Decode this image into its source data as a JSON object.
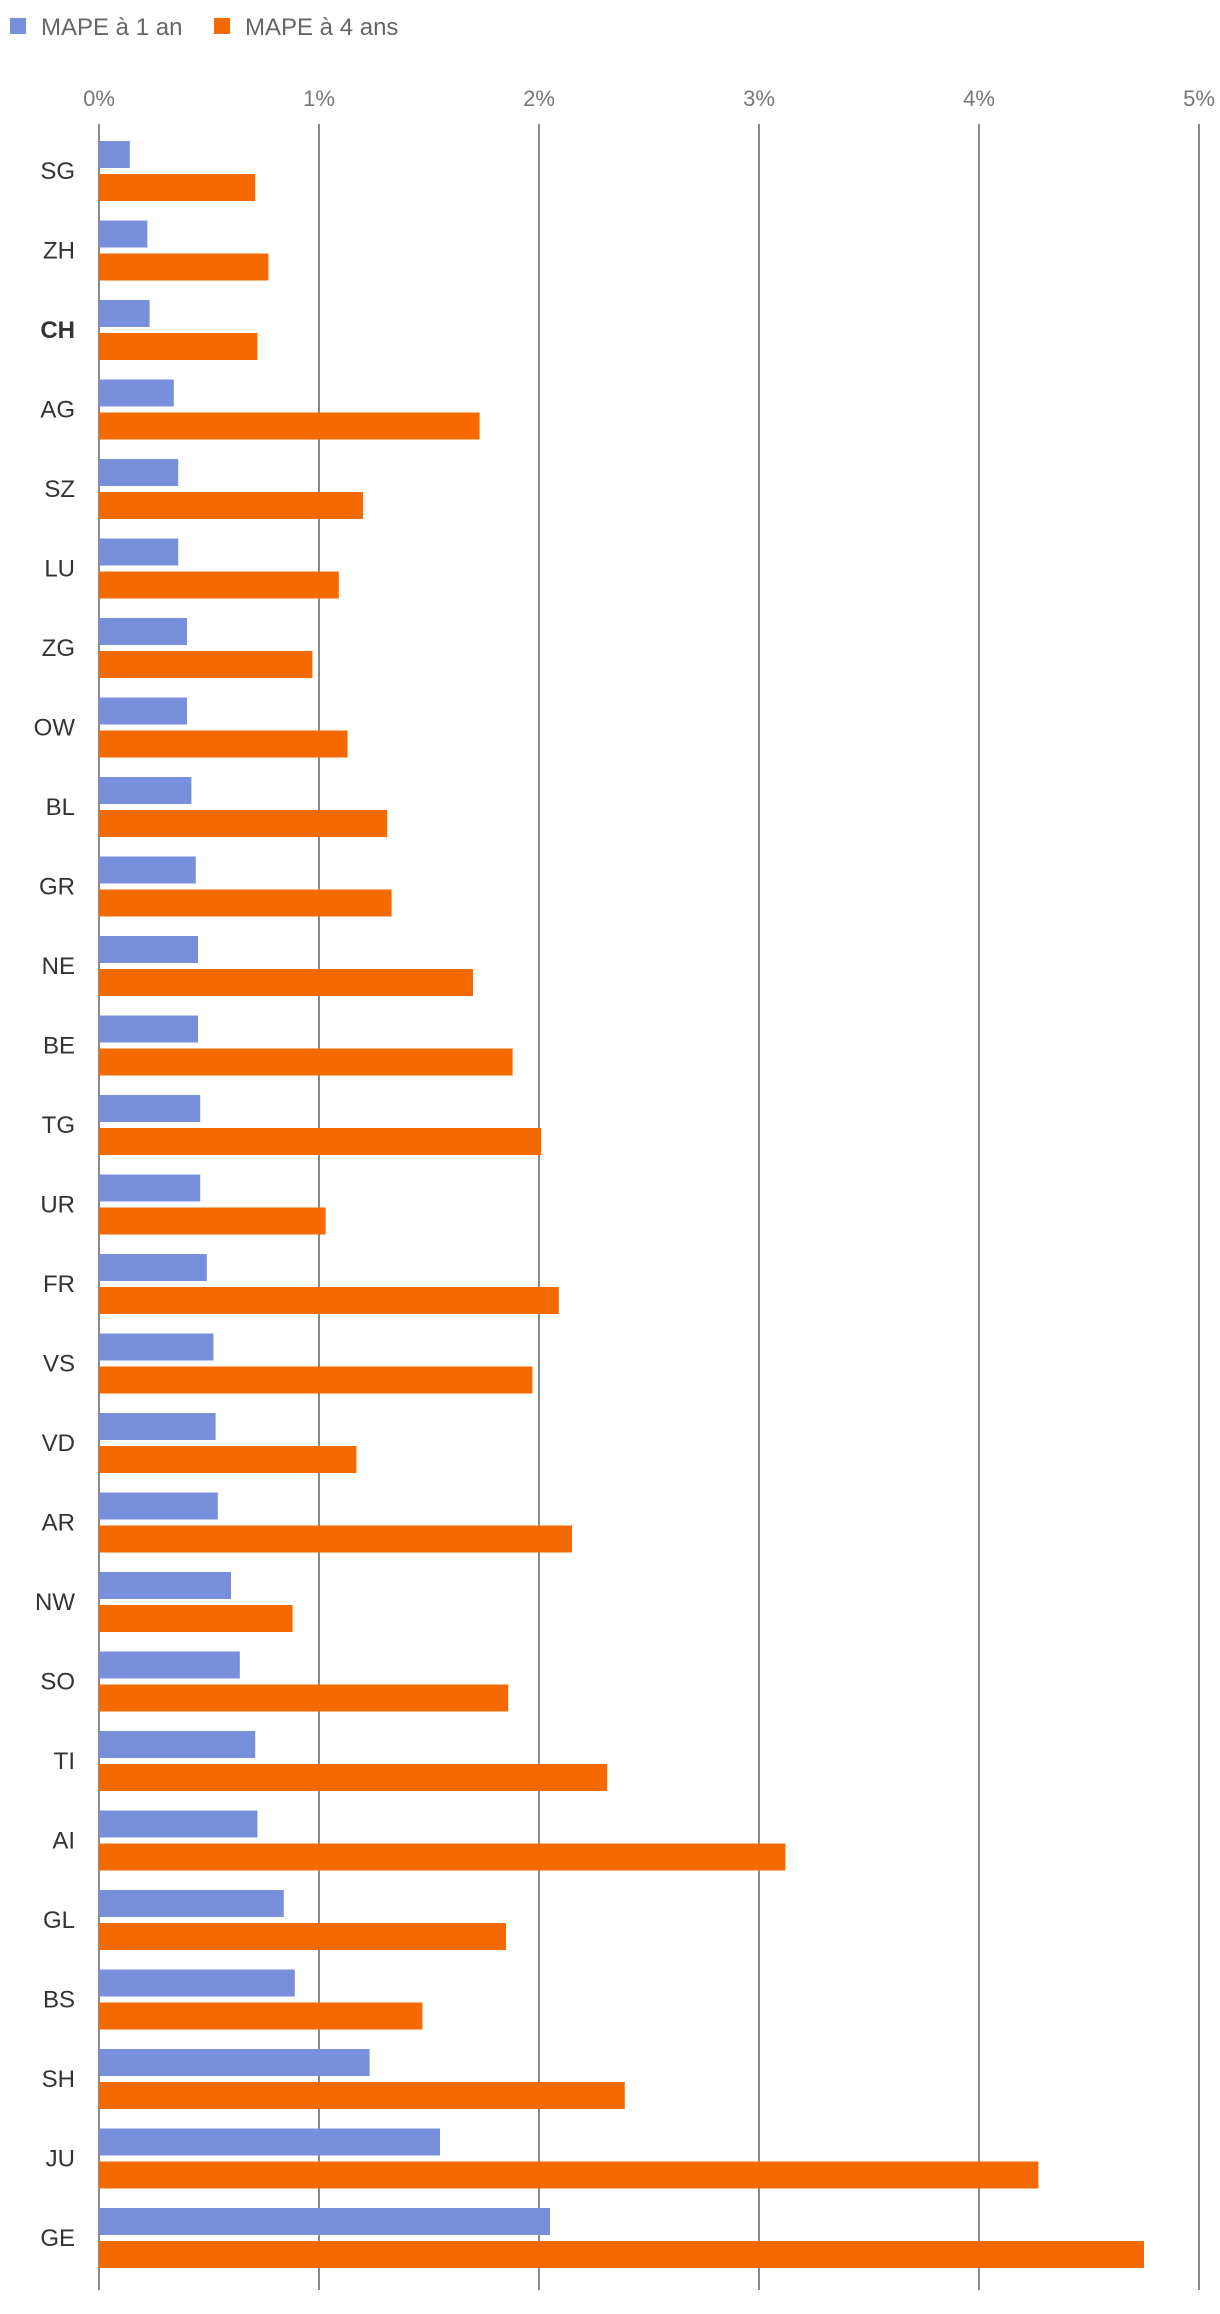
{
  "chart_data": {
    "type": "bar",
    "orientation": "horizontal",
    "categories": [
      "SG",
      "ZH",
      "CH",
      "AG",
      "SZ",
      "LU",
      "ZG",
      "OW",
      "BL",
      "GR",
      "NE",
      "BE",
      "TG",
      "UR",
      "FR",
      "VS",
      "VD",
      "AR",
      "NW",
      "SO",
      "TI",
      "AI",
      "GL",
      "BS",
      "SH",
      "JU",
      "GE"
    ],
    "emphasized_category": "CH",
    "series": [
      {
        "name": "MAPE à 1 an",
        "color": "#7890dc",
        "values": [
          0.14,
          0.22,
          0.23,
          0.34,
          0.36,
          0.36,
          0.4,
          0.4,
          0.42,
          0.44,
          0.45,
          0.45,
          0.46,
          0.46,
          0.49,
          0.52,
          0.53,
          0.54,
          0.6,
          0.64,
          0.71,
          0.72,
          0.84,
          0.89,
          1.23,
          1.55,
          2.05
        ]
      },
      {
        "name": "MAPE à 4 ans",
        "color": "#f56a00",
        "values": [
          0.71,
          0.77,
          0.72,
          1.73,
          1.2,
          1.09,
          0.97,
          1.13,
          1.31,
          1.33,
          1.7,
          1.88,
          2.01,
          1.03,
          2.09,
          1.97,
          1.17,
          2.15,
          0.88,
          1.86,
          2.31,
          3.12,
          1.85,
          1.47,
          2.39,
          4.27,
          4.75
        ]
      }
    ],
    "x_ticks": [
      "0%",
      "1%",
      "2%",
      "3%",
      "4%",
      "5%"
    ],
    "xlim": [
      0,
      5
    ],
    "x_unit": "%",
    "axis_position": "top",
    "grid": true,
    "legend_placement": "top-left",
    "title": "",
    "xlabel": "",
    "ylabel": ""
  }
}
